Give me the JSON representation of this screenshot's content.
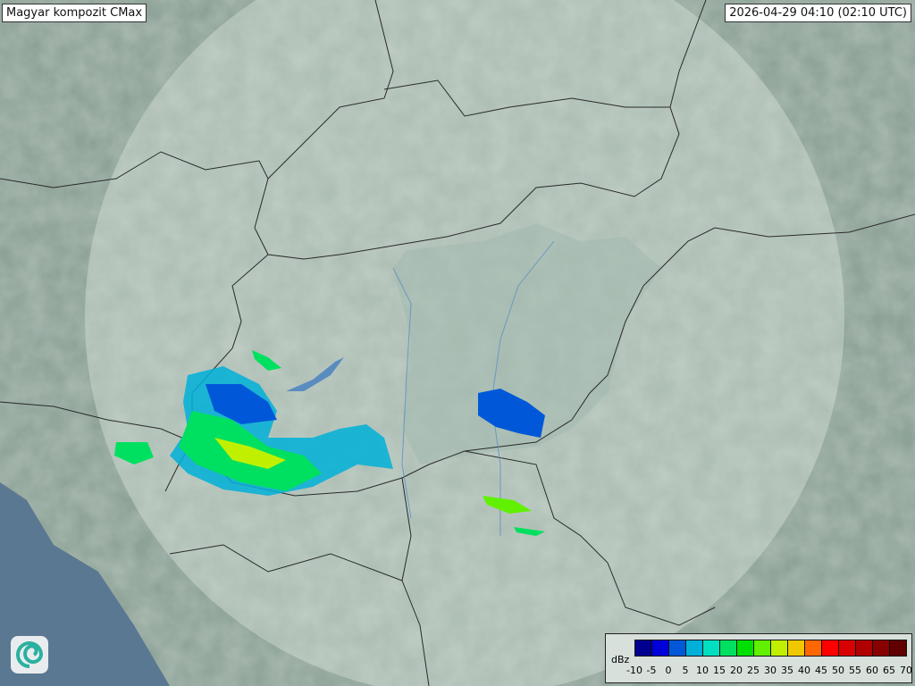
{
  "header": {
    "title": "Magyar kompozit  CMax",
    "timestamp": "2026-04-29 04:10 (02:10 UTC)"
  },
  "logo": {
    "icon": "swirl-logo-icon"
  },
  "legend": {
    "unit": "dBz",
    "ticks": [
      "-10",
      "-5",
      "0",
      "5",
      "10",
      "15",
      "20",
      "25",
      "30",
      "35",
      "40",
      "45",
      "50",
      "55",
      "60",
      "65",
      "70"
    ],
    "colors": [
      "#000090",
      "#0000d8",
      "#0058d8",
      "#00b0d8",
      "#00e0c0",
      "#00e060",
      "#00e000",
      "#60f000",
      "#c0f000",
      "#f0c800",
      "#ff6800",
      "#ff0000",
      "#d80000",
      "#b00000",
      "#880000",
      "#600000"
    ]
  }
}
